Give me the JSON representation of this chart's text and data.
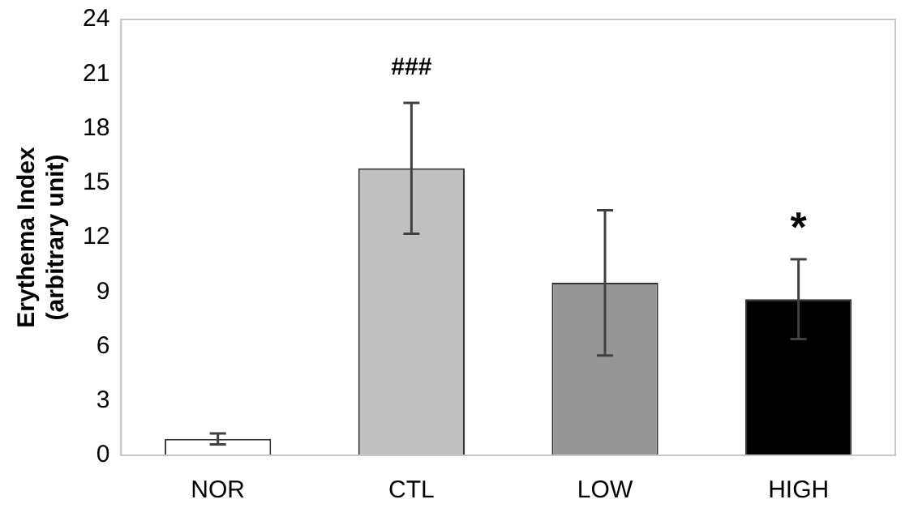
{
  "chart_data": {
    "type": "bar",
    "ylabel": "Erythema Index\n(arbitrary unit)",
    "categories": [
      "NOR",
      "CTL",
      "LOW",
      "HIGH"
    ],
    "values": [
      0.9,
      15.8,
      9.5,
      8.6
    ],
    "colors": [
      "#ffffff",
      "#c0c0c0",
      "#969696",
      "#000000"
    ],
    "errors": [
      0.3,
      3.6,
      4.0,
      2.2
    ],
    "ylim": [
      0,
      24
    ],
    "yticks": [
      0,
      3,
      6,
      9,
      12,
      15,
      18,
      21,
      24
    ],
    "grid": false,
    "legend": false,
    "annotations": [
      {
        "text": "###",
        "x": "CTL",
        "y": 19.4
      },
      {
        "text": "*",
        "x": "HIGH",
        "y": 10.8
      }
    ]
  }
}
